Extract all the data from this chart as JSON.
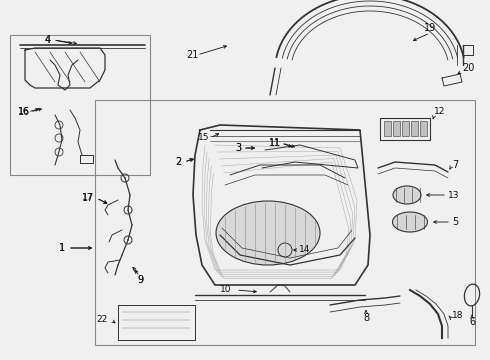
{
  "bg_color": "#f0f0f0",
  "line_color": "#333333",
  "text_color": "#111111",
  "border_color": "#888888",
  "fig_width": 4.9,
  "fig_height": 3.6,
  "dpi": 100
}
